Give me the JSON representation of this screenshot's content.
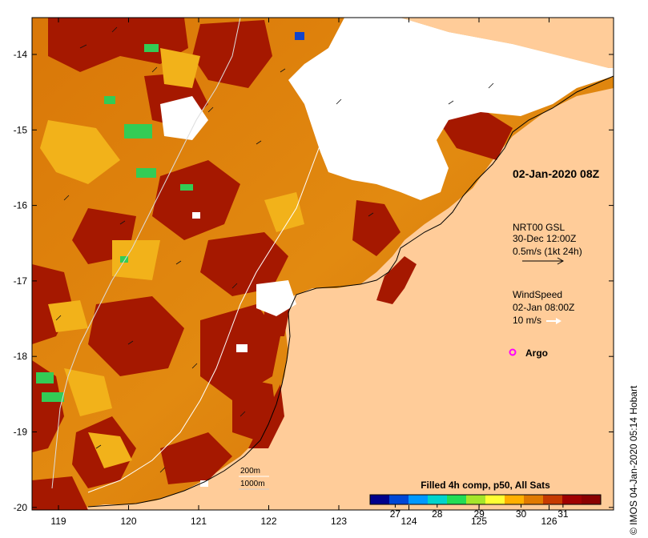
{
  "map": {
    "timestamp_label": "02-Jan-2020 08Z",
    "x_ticks": [
      "119",
      "120",
      "121",
      "122",
      "123",
      "124",
      "125",
      "126"
    ],
    "y_ticks": [
      "-14",
      "-15",
      "-16",
      "-17",
      "-18",
      "-19",
      "-20"
    ]
  },
  "legend": {
    "drifter_name": "NRT00 GSL",
    "drifter_time": "30-Dec 12:00Z",
    "drifter_scale": "0.5m/s (1kt 24h)",
    "wind_title": "WindSpeed",
    "wind_time": "02-Jan 08:00Z",
    "wind_scale": "10 m/s",
    "argo_label": "Argo",
    "argo_color": "#ff00ff"
  },
  "isobaths": {
    "label_200": "200m",
    "label_1000": "1000m"
  },
  "colorbar": {
    "title": "Filled 4h comp, p50, All Sats",
    "ticks": [
      "27",
      "28",
      "29",
      "30",
      "31"
    ],
    "min": 26.4,
    "max": 31.9,
    "colors": [
      "#00008b",
      "#0047d6",
      "#0099ff",
      "#00d4cc",
      "#22dd55",
      "#a6e62a",
      "#ffff33",
      "#ffb000",
      "#e07a00",
      "#c63a00",
      "#a00000",
      "#8b0000"
    ]
  },
  "colors": {
    "land": "#ffcc99",
    "ocean_dark": "#a51800",
    "ocean_warm": "#d8780a",
    "ocean_hot": "#f2b21a",
    "cloud": "#ffffff"
  },
  "footer": {
    "copyright": "© IMOS 04-Jan-2020 05:14 Hobart"
  }
}
